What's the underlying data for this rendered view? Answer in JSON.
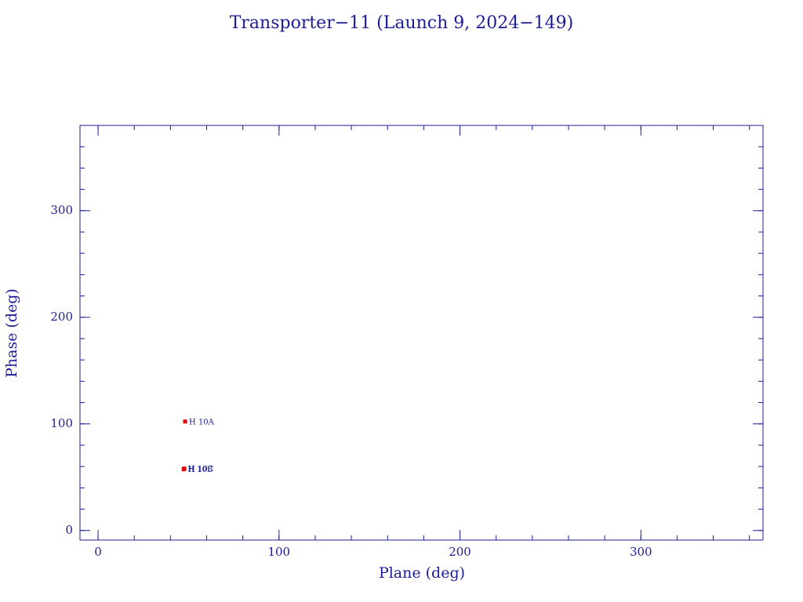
{
  "chart_data": {
    "type": "scatter",
    "title": "Transporter−11 (Launch 9, 2024−149)",
    "xlabel": "Plane (deg)",
    "ylabel": "Phase (deg)",
    "x": [
      48.1,
      47.3,
      47.7
    ],
    "values": [
      102.2,
      57.4,
      58.1
    ],
    "point_labels": [
      "H 10A",
      "H 10B",
      "H 10C"
    ],
    "color": "#e00000",
    "xlim": [
      -10,
      367.5
    ],
    "ylim": [
      -9,
      380
    ],
    "xticks": [
      0,
      100,
      200,
      300
    ],
    "yticks": [
      0,
      100,
      200,
      300
    ]
  }
}
